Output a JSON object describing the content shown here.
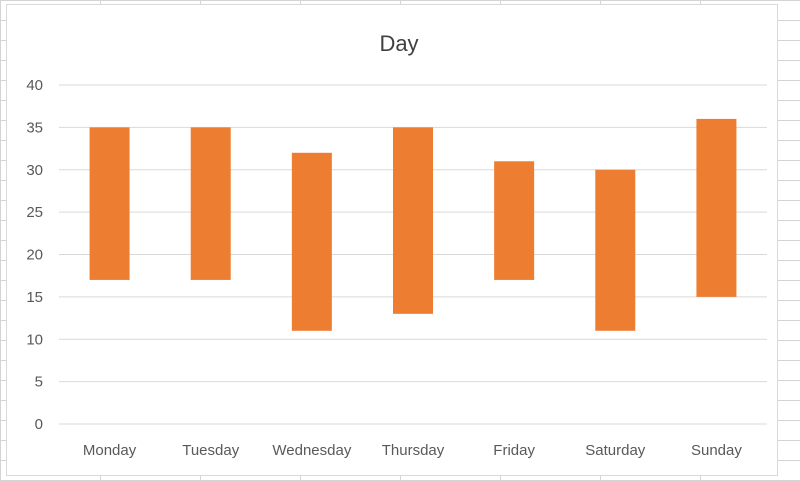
{
  "chart_data": {
    "type": "bar",
    "subtype": "floating-range",
    "title": "Day",
    "categories": [
      "Monday",
      "Tuesday",
      "Wednesday",
      "Thursday",
      "Friday",
      "Saturday",
      "Sunday"
    ],
    "series": [
      {
        "low": [
          17,
          17,
          11,
          13,
          17,
          11,
          15
        ],
        "high": [
          35,
          35,
          32,
          35,
          31,
          30,
          36
        ]
      }
    ],
    "ylim": [
      0,
      40
    ],
    "yticks": [
      0,
      5,
      10,
      15,
      20,
      25,
      30,
      35,
      40
    ],
    "grid": true,
    "legend": "none",
    "colors": {
      "bar": "#ED7D31",
      "grid": "#d9d9d9"
    }
  }
}
